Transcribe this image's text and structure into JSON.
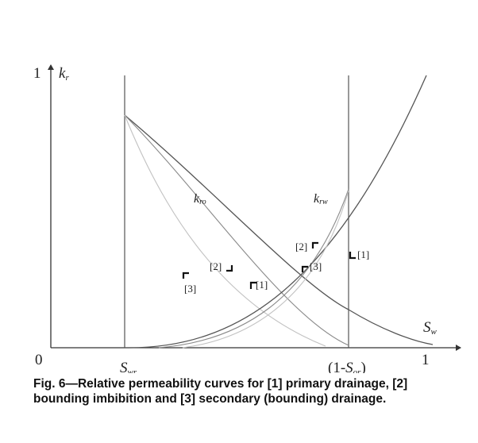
{
  "axes": {
    "y_top_tick": "1",
    "y_label_main": "k",
    "y_label_sub": "r",
    "origin": "0",
    "x_right_tick": "1",
    "x_label_main": "S",
    "x_label_sub": "w",
    "swr_main": "S",
    "swr_sub": "wr",
    "sor_prefix": "(1-",
    "sor_main": "S",
    "sor_sub": "or",
    "sor_suffix": ")"
  },
  "curve_labels": {
    "kro_main": "k",
    "kro_sub": "ro",
    "krw_main": "k",
    "krw_sub": "rw"
  },
  "markers": {
    "m1_left": "[1]",
    "m2_left": "[2]",
    "m3_left": "[3]",
    "m2_right": "[2]",
    "m3_right": "[3]",
    "m1_right": "[1]"
  },
  "caption": "Fig. 6—Relative permeability curves for [1] primary drainage, [2] bounding imbibition and [3] secondary (bounding) drainage.",
  "colors": {
    "axis": "#333333",
    "curve_dark": "#555555",
    "curve_mid": "#8a8a8a",
    "curve_light": "#c2c2c2",
    "text": "#222222"
  }
}
